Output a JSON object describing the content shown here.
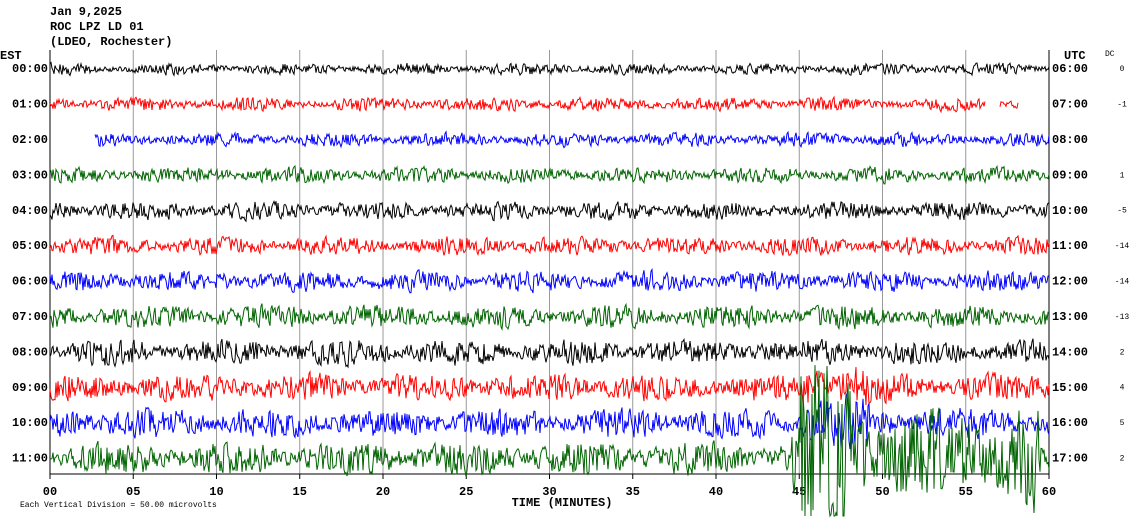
{
  "header": {
    "date": "Jan 9,2025",
    "station": "ROC LPZ LD 01",
    "network": "(LDEO, Rochester)"
  },
  "left_axis": {
    "title": "EST",
    "labels": [
      "00:00",
      "01:00",
      "02:00",
      "03:00",
      "04:00",
      "05:00",
      "06:00",
      "07:00",
      "08:00",
      "09:00",
      "10:00",
      "11:00"
    ]
  },
  "right_axis": {
    "title": "UTC",
    "labels": [
      "06:00",
      "07:00",
      "08:00",
      "09:00",
      "10:00",
      "11:00",
      "12:00",
      "13:00",
      "14:00",
      "15:00",
      "16:00",
      "17:00"
    ]
  },
  "dc": {
    "title": "DC",
    "values": [
      0,
      -1,
      null,
      1,
      -5,
      -14,
      -14,
      -13,
      2,
      4,
      5,
      2
    ]
  },
  "x_axis": {
    "title": "TIME (MINUTES)",
    "ticks": [
      "00",
      "05",
      "10",
      "15",
      "20",
      "25",
      "30",
      "35",
      "40",
      "45",
      "50",
      "55",
      "60"
    ]
  },
  "footer": "Each Vertical Division =   50.00 microvolts",
  "trace_colors": [
    "#000000",
    "#ff0000",
    "#0000ff",
    "#006400"
  ]
}
